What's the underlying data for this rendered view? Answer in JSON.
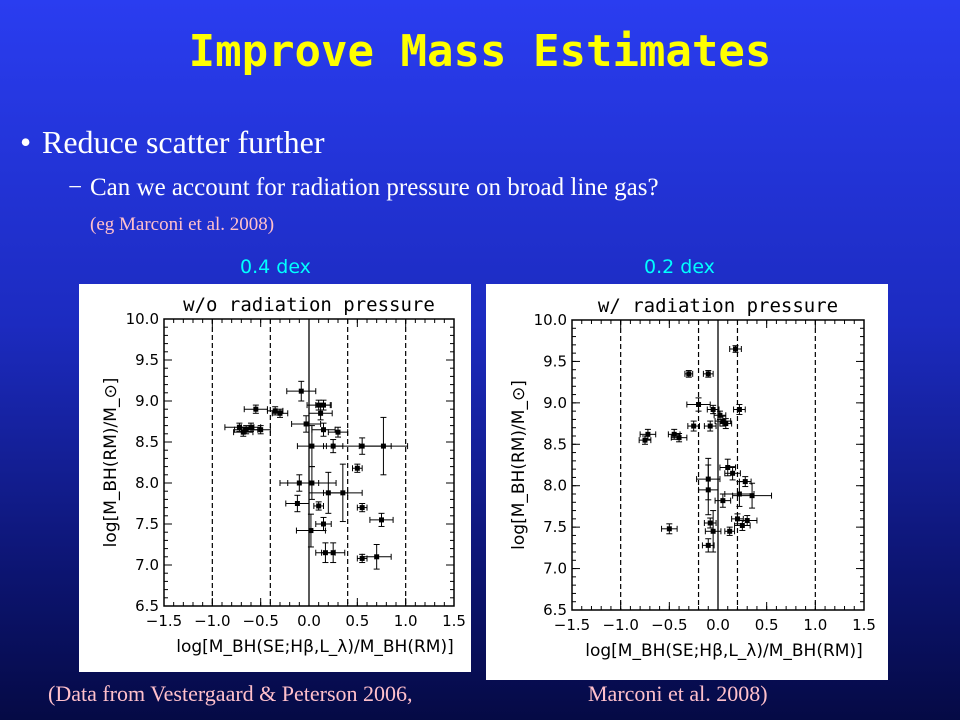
{
  "slide": {
    "title": "Improve Mass Estimates",
    "bullet": "Reduce scatter further",
    "sub_bullet": "Can we account for radiation pressure on broad line gas?",
    "note": "(eg Marconi et al. 2008)",
    "left_scatter_label": "0.4 dex",
    "right_scatter_label": "0.2 dex",
    "caption_left": "(Data from Vestergaard & Peterson 2006,",
    "caption_right": "Marconi et al. 2008)"
  },
  "chart_data": [
    {
      "type": "scatter",
      "title": "w/o radiation pressure",
      "xlabel": "log[M_BH(SE;Hβ,L_λ)/M_BH(RM)]",
      "ylabel": "log[M_BH(RM)/M_⊙]",
      "xlim": [
        -1.5,
        1.5
      ],
      "ylim": [
        6.5,
        10.0
      ],
      "xticks": [
        "−1.5",
        "−1.0",
        "−0.5",
        "0.0",
        "0.5",
        "1.0",
        "1.5"
      ],
      "yticks": [
        "6.5",
        "7.0",
        "7.5",
        "8.0",
        "8.5",
        "9.0",
        "9.5",
        "10.0"
      ],
      "solid_lines_x": [
        0
      ],
      "dashed_lines_x": [
        -1.0,
        -0.4,
        0.4,
        1.0
      ],
      "points": [
        {
          "x": -0.55,
          "y": 8.9,
          "xerr": 0.12,
          "yerr": 0.05
        },
        {
          "x": -0.35,
          "y": 8.88,
          "xerr": 0.08,
          "yerr": 0.05
        },
        {
          "x": -0.3,
          "y": 8.85,
          "xerr": 0.08,
          "yerr": 0.05
        },
        {
          "x": -0.72,
          "y": 8.68,
          "xerr": 0.15,
          "yerr": 0.05
        },
        {
          "x": -0.65,
          "y": 8.65,
          "xerr": 0.12,
          "yerr": 0.05
        },
        {
          "x": -0.6,
          "y": 8.68,
          "xerr": 0.1,
          "yerr": 0.05
        },
        {
          "x": -0.5,
          "y": 8.65,
          "xerr": 0.1,
          "yerr": 0.05
        },
        {
          "x": -0.68,
          "y": 8.62,
          "xerr": 0.1,
          "yerr": 0.05
        },
        {
          "x": -0.08,
          "y": 9.12,
          "xerr": 0.15,
          "yerr": 0.12
        },
        {
          "x": 0.1,
          "y": 8.95,
          "xerr": 0.12,
          "yerr": 0.06
        },
        {
          "x": 0.15,
          "y": 8.95,
          "xerr": 0.08,
          "yerr": 0.06
        },
        {
          "x": 0.12,
          "y": 8.85,
          "xerr": 0.12,
          "yerr": 0.08
        },
        {
          "x": -0.03,
          "y": 8.72,
          "xerr": 0.15,
          "yerr": 0.1
        },
        {
          "x": 0.15,
          "y": 8.65,
          "xerr": 0.12,
          "yerr": 0.08
        },
        {
          "x": 0.3,
          "y": 8.62,
          "xerr": 0.1,
          "yerr": 0.06
        },
        {
          "x": 0.03,
          "y": 8.45,
          "xerr": 0.15,
          "yerr": 0.25
        },
        {
          "x": 0.25,
          "y": 8.45,
          "xerr": 0.1,
          "yerr": 0.08
        },
        {
          "x": 0.55,
          "y": 8.45,
          "xerr": 0.3,
          "yerr": 0.1
        },
        {
          "x": 0.77,
          "y": 8.45,
          "xerr": 0.25,
          "yerr": 0.35
        },
        {
          "x": 0.5,
          "y": 8.18,
          "xerr": 0.05,
          "yerr": 0.05
        },
        {
          "x": 0.55,
          "y": 7.7,
          "xerr": 0.05,
          "yerr": 0.05
        },
        {
          "x": -0.1,
          "y": 8.0,
          "xerr": 0.2,
          "yerr": 0.1
        },
        {
          "x": 0.03,
          "y": 8.0,
          "xerr": 0.25,
          "yerr": 0.2
        },
        {
          "x": 0.2,
          "y": 7.88,
          "xerr": 0.2,
          "yerr": 0.25
        },
        {
          "x": 0.35,
          "y": 7.88,
          "xerr": 0.2,
          "yerr": 0.35
        },
        {
          "x": -0.12,
          "y": 7.75,
          "xerr": 0.12,
          "yerr": 0.1
        },
        {
          "x": 0.1,
          "y": 7.72,
          "xerr": 0.05,
          "yerr": 0.05
        },
        {
          "x": 0.15,
          "y": 7.5,
          "xerr": 0.08,
          "yerr": 0.08
        },
        {
          "x": 0.75,
          "y": 7.55,
          "xerr": 0.12,
          "yerr": 0.08
        },
        {
          "x": 0.02,
          "y": 7.42,
          "xerr": 0.15,
          "yerr": 0.2
        },
        {
          "x": 0.17,
          "y": 7.15,
          "xerr": 0.1,
          "yerr": 0.12
        },
        {
          "x": 0.25,
          "y": 7.15,
          "xerr": 0.12,
          "yerr": 0.12
        },
        {
          "x": 0.55,
          "y": 7.08,
          "xerr": 0.05,
          "yerr": 0.05
        },
        {
          "x": 0.7,
          "y": 7.1,
          "xerr": 0.15,
          "yerr": 0.15
        }
      ]
    },
    {
      "type": "scatter",
      "title": "w/ radiation pressure",
      "xlabel": "log[M_BH(SE;Hβ,L_λ)/M_BH(RM)]",
      "ylabel": "log[M_BH(RM)/M_⊙]",
      "xlim": [
        -1.5,
        1.5
      ],
      "ylim": [
        6.5,
        10.0
      ],
      "xticks": [
        "−1.5",
        "−1.0",
        "−0.5",
        "0.0",
        "0.5",
        "1.0",
        "1.5"
      ],
      "yticks": [
        "6.5",
        "7.0",
        "7.5",
        "8.0",
        "8.5",
        "9.0",
        "9.5",
        "10.0"
      ],
      "solid_lines_x": [
        0
      ],
      "dashed_lines_x": [
        -1.0,
        -0.2,
        0.2,
        1.0
      ],
      "points": [
        {
          "x": 0.18,
          "y": 9.65,
          "xerr": 0.06,
          "yerr": 0.04
        },
        {
          "x": -0.1,
          "y": 9.35,
          "xerr": 0.05,
          "yerr": 0.04
        },
        {
          "x": -0.3,
          "y": 9.35,
          "xerr": 0.04,
          "yerr": 0.04
        },
        {
          "x": -0.2,
          "y": 8.98,
          "xerr": 0.12,
          "yerr": 0.08
        },
        {
          "x": -0.05,
          "y": 8.92,
          "xerr": 0.06,
          "yerr": 0.05
        },
        {
          "x": 0.22,
          "y": 8.92,
          "xerr": 0.06,
          "yerr": 0.06
        },
        {
          "x": 0.02,
          "y": 8.85,
          "xerr": 0.06,
          "yerr": 0.05
        },
        {
          "x": 0.05,
          "y": 8.78,
          "xerr": 0.08,
          "yerr": 0.06
        },
        {
          "x": 0.08,
          "y": 8.75,
          "xerr": 0.06,
          "yerr": 0.06
        },
        {
          "x": -0.25,
          "y": 8.72,
          "xerr": 0.06,
          "yerr": 0.06
        },
        {
          "x": -0.08,
          "y": 8.72,
          "xerr": 0.06,
          "yerr": 0.06
        },
        {
          "x": -0.72,
          "y": 8.62,
          "xerr": 0.08,
          "yerr": 0.06
        },
        {
          "x": -0.45,
          "y": 8.62,
          "xerr": 0.06,
          "yerr": 0.06
        },
        {
          "x": -0.4,
          "y": 8.58,
          "xerr": 0.08,
          "yerr": 0.05
        },
        {
          "x": -0.75,
          "y": 8.55,
          "xerr": 0.06,
          "yerr": 0.05
        },
        {
          "x": 0.1,
          "y": 8.22,
          "xerr": 0.08,
          "yerr": 0.1
        },
        {
          "x": 0.15,
          "y": 8.15,
          "xerr": 0.08,
          "yerr": 0.08
        },
        {
          "x": -0.1,
          "y": 8.08,
          "xerr": 0.12,
          "yerr": 0.25
        },
        {
          "x": 0.28,
          "y": 8.05,
          "xerr": 0.06,
          "yerr": 0.06
        },
        {
          "x": -0.1,
          "y": 7.95,
          "xerr": 0.1,
          "yerr": 0.3
        },
        {
          "x": 0.22,
          "y": 7.9,
          "xerr": 0.15,
          "yerr": 0.15
        },
        {
          "x": 0.35,
          "y": 7.88,
          "xerr": 0.2,
          "yerr": 0.15
        },
        {
          "x": 0.05,
          "y": 7.82,
          "xerr": 0.08,
          "yerr": 0.08
        },
        {
          "x": 0.2,
          "y": 7.6,
          "xerr": 0.06,
          "yerr": 0.06
        },
        {
          "x": 0.3,
          "y": 7.58,
          "xerr": 0.1,
          "yerr": 0.06
        },
        {
          "x": -0.08,
          "y": 7.55,
          "xerr": 0.06,
          "yerr": 0.06
        },
        {
          "x": 0.25,
          "y": 7.52,
          "xerr": 0.08,
          "yerr": 0.06
        },
        {
          "x": -0.5,
          "y": 7.48,
          "xerr": 0.08,
          "yerr": 0.06
        },
        {
          "x": -0.05,
          "y": 7.45,
          "xerr": 0.08,
          "yerr": 0.25
        },
        {
          "x": -0.1,
          "y": 7.28,
          "xerr": 0.06,
          "yerr": 0.08
        },
        {
          "x": 0.12,
          "y": 7.45,
          "xerr": 0.05,
          "yerr": 0.05
        }
      ]
    }
  ]
}
